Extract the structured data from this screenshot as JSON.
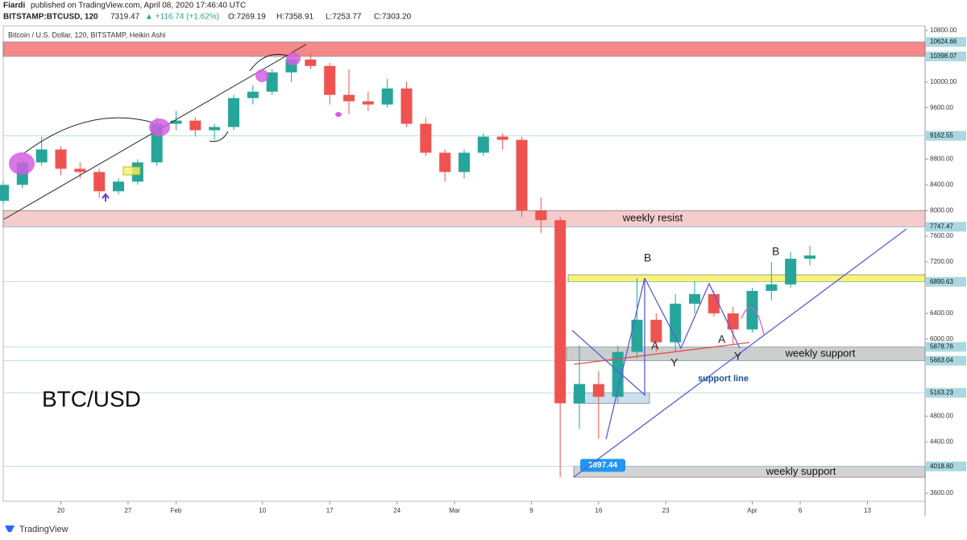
{
  "header": {
    "author": "Fiardi",
    "published": "published on TradingView.com, April 08, 2020 17:46:40 UTC",
    "symbol": "BITSTAMP:BTCUSD, 120",
    "last": "7319.47",
    "change": "▲ +116.74 (+1.62%)",
    "open": "O:7269.19",
    "high": "H:7358.91",
    "low": "L:7253.77",
    "close": "C:7303.20"
  },
  "chart_data": {
    "type": "candlestick",
    "title": "Bitcoin / U.S. Dollar, 120, BITSTAMP, Heikin Ashi",
    "watermark": "BTC/USD",
    "x": [
      -6,
      -4,
      -2,
      0,
      2,
      4,
      6,
      8,
      10,
      12,
      14,
      16,
      18,
      20,
      22,
      24,
      26,
      28,
      30,
      32,
      34,
      36,
      38,
      40,
      42,
      44,
      46,
      48,
      50,
      52,
      54,
      56,
      58,
      60,
      62,
      64,
      66,
      68,
      70,
      72,
      74,
      76,
      78
    ],
    "open": [
      8150,
      8400,
      8750,
      8950,
      8650,
      8600,
      8300,
      8450,
      8750,
      9350,
      9400,
      9250,
      9300,
      9750,
      9850,
      10150,
      10350,
      10250,
      9800,
      9700,
      9650,
      9900,
      9350,
      8900,
      8600,
      8900,
      9150,
      9100,
      8000,
      7850,
      5000,
      5300,
      5100,
      5800,
      6300,
      5950,
      6550,
      6700,
      6400,
      6150,
      6750,
      6850,
      7250
    ],
    "high": [
      8450,
      8800,
      9150,
      9000,
      8750,
      8650,
      8500,
      8800,
      9450,
      9550,
      9450,
      9350,
      9800,
      9950,
      10200,
      10450,
      10450,
      10300,
      10200,
      9850,
      10050,
      10000,
      9450,
      8950,
      8950,
      9200,
      9200,
      9150,
      8200,
      7900,
      5900,
      5500,
      5900,
      6950,
      6400,
      6700,
      6900,
      6750,
      6500,
      6800,
      7200,
      7350,
      7450
    ],
    "low": [
      8100,
      8350,
      8700,
      8550,
      8500,
      8200,
      8250,
      8400,
      8700,
      9250,
      9150,
      9100,
      9250,
      9650,
      9800,
      10000,
      10200,
      9650,
      9500,
      9550,
      9600,
      9300,
      8850,
      8450,
      8500,
      8850,
      8950,
      7900,
      7650,
      3850,
      4600,
      4450,
      5000,
      5700,
      5800,
      5800,
      6400,
      6350,
      5900,
      6100,
      6600,
      6800,
      7150
    ],
    "close": [
      8400,
      8750,
      8950,
      8650,
      8600,
      8300,
      8450,
      8750,
      9350,
      9400,
      9250,
      9300,
      9750,
      9850,
      10150,
      10350,
      10250,
      9800,
      9700,
      9650,
      9900,
      9350,
      8900,
      8600,
      8900,
      9150,
      9100,
      8000,
      7850,
      5000,
      5300,
      5100,
      5800,
      6300,
      5950,
      6550,
      6700,
      6400,
      6150,
      6750,
      6850,
      7250,
      7300
    ],
    "up_color": "#26a69a",
    "down_color": "#ef5350",
    "xlim": [
      -6,
      90
    ],
    "xticks": [
      {
        "value": 0,
        "label": "20"
      },
      {
        "value": 7,
        "label": "27"
      },
      {
        "value": 12,
        "label": "Feb"
      },
      {
        "value": 21,
        "label": "10"
      },
      {
        "value": 28,
        "label": "17"
      },
      {
        "value": 35,
        "label": "24"
      },
      {
        "value": 41,
        "label": "Mar"
      },
      {
        "value": 49,
        "label": "9"
      },
      {
        "value": 56,
        "label": "16"
      },
      {
        "value": 63,
        "label": "23"
      },
      {
        "value": 72,
        "label": "Apr"
      },
      {
        "value": 77,
        "label": "6"
      },
      {
        "value": 84,
        "label": "13"
      }
    ],
    "ylim": [
      3475,
      10875
    ],
    "yticks": [
      {
        "value": 10800,
        "label": "10800.00"
      },
      {
        "value": 10000,
        "label": "10000.00"
      },
      {
        "value": 9600,
        "label": "9600.00"
      },
      {
        "value": 8800,
        "label": "8800.00"
      },
      {
        "value": 8400,
        "label": "8400.00"
      },
      {
        "value": 8000,
        "label": "8000.00"
      },
      {
        "value": 7600,
        "label": "7600.00"
      },
      {
        "value": 7200,
        "label": "7200.00"
      },
      {
        "value": 6400,
        "label": "6400.00"
      },
      {
        "value": 6000,
        "label": "6000.00"
      },
      {
        "value": 4800,
        "label": "4800.00"
      },
      {
        "value": 4400,
        "label": "4400.00"
      },
      {
        "value": 3600,
        "label": "3600.00"
      }
    ],
    "price_levels": [
      {
        "value": 10624.66,
        "label": "10624.66"
      },
      {
        "value": 10398.07,
        "label": "10398.07"
      },
      {
        "value": 9162.55,
        "label": "9162.55"
      },
      {
        "value": 7747.47,
        "label": "7747.47"
      },
      {
        "value": 6890.63,
        "label": "6890.63"
      },
      {
        "value": 5878.76,
        "label": "5878.76"
      },
      {
        "value": 5663.04,
        "label": "5663.04"
      },
      {
        "value": 5163.23,
        "label": "5163.23"
      },
      {
        "value": 4018.6,
        "label": "4018.60"
      }
    ],
    "low_callout": {
      "value": 3897.44,
      "label": "3897.44"
    },
    "zones": [
      {
        "low": 10398.07,
        "high": 10624.66,
        "color": "#f47c7c"
      },
      {
        "low": 7747.47,
        "high": 8000,
        "color": "#f5c6c6",
        "label": "weekly resist"
      },
      {
        "low": 6890.63,
        "high": 7000,
        "color": "#f7f26a"
      },
      {
        "low": 5663.04,
        "high": 5878.76,
        "color": "#c8c8c8",
        "label": "weekly support"
      },
      {
        "low": 5000,
        "high": 5163.23,
        "color": "#c5dcef"
      },
      {
        "low": 3850,
        "high": 4018.6,
        "color": "#cfcfcf",
        "label": "weekly support"
      }
    ],
    "annotations": {
      "support": "support line",
      "b1": "B",
      "b2": "B",
      "a1": "A",
      "a2": "A",
      "y1": "Y",
      "y2": "Y"
    }
  },
  "footer": "TradingView"
}
